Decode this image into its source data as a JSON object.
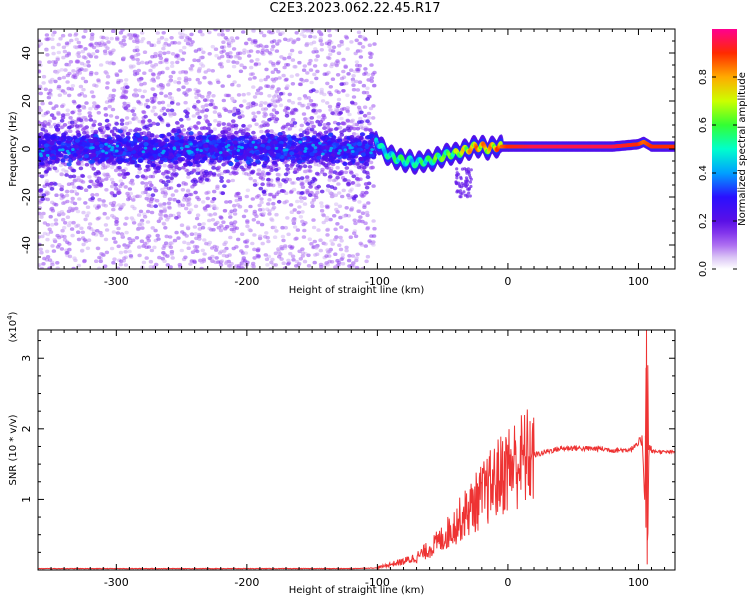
{
  "title": "C2E3.2023.062.22.45.R17",
  "chart_data": [
    {
      "type": "heatmap",
      "xlabel": "Height of straight line (km)",
      "ylabel": "Frequency (Hz)",
      "xlim": [
        -360,
        128
      ],
      "ylim": [
        -50,
        50
      ],
      "xticks": [
        -300,
        -200,
        -100,
        0,
        100
      ],
      "yticks": [
        -40,
        -20,
        0,
        20,
        40
      ],
      "grid": false,
      "colorbar": {
        "label": "Normalized spectral amplitude",
        "range": [
          0,
          1
        ],
        "ticks": [
          0.0,
          0.2,
          0.4,
          0.6,
          0.8
        ]
      },
      "noise_region": {
        "x": [
          -360,
          -102
        ],
        "note_values": "scattered low-amplitude speckle across all frequencies, dense band near 0 Hz"
      },
      "signal_trace": {
        "x": [
          -101,
          -95,
          -90,
          -85,
          -80,
          -75,
          -70,
          -65,
          -60,
          -55,
          -50,
          -45,
          -40,
          -35,
          -30,
          -25,
          -20,
          -15,
          -10,
          -5,
          0,
          20,
          40,
          60,
          80,
          100,
          104,
          110,
          128
        ],
        "y": [
          4,
          -1,
          -3,
          -4,
          -5,
          -5,
          -6,
          -5,
          -5,
          -4,
          -3,
          -2,
          -2,
          -1,
          0,
          1,
          1,
          0,
          1,
          1,
          1,
          1,
          1,
          1,
          1,
          2,
          3,
          1,
          1
        ],
        "amplitude": [
          0.45,
          0.5,
          0.5,
          0.55,
          0.55,
          0.5,
          0.5,
          0.55,
          0.55,
          0.6,
          0.6,
          0.6,
          0.65,
          0.7,
          0.75,
          0.8,
          0.8,
          0.75,
          0.8,
          0.85,
          0.9,
          0.95,
          0.95,
          0.95,
          0.95,
          0.9,
          0.85,
          0.9,
          0.9
        ]
      }
    },
    {
      "type": "line",
      "xlabel": "Height of straight line (km)",
      "ylabel": "SNR (10 * v/v)",
      "yscale_note": "(x10",
      "yscale_exp": "4",
      "yscale_close": ")",
      "xlim": [
        -360,
        128
      ],
      "ylim": [
        0,
        3.4
      ],
      "xticks": [
        -300,
        -200,
        -100,
        0,
        100
      ],
      "yticks": [
        1,
        2,
        3
      ],
      "grid": false,
      "color": "#ee3333",
      "series": [
        {
          "x": [
            -360,
            -300,
            -200,
            -120,
            -100,
            -90,
            -80,
            -70,
            -60,
            -50,
            -45,
            -40,
            -35,
            -30,
            -25,
            -20,
            -15,
            -10,
            -5,
            0,
            5,
            10,
            15,
            20,
            25,
            30,
            40,
            50,
            60,
            70,
            80,
            90,
            95,
            100,
            103,
            105,
            106,
            107,
            108,
            110,
            115,
            120,
            128
          ],
          "values": [
            0.02,
            0.02,
            0.02,
            0.02,
            0.03,
            0.08,
            0.12,
            0.18,
            0.3,
            0.45,
            0.55,
            0.65,
            0.75,
            0.85,
            0.95,
            1.05,
            1.15,
            1.25,
            1.35,
            1.45,
            1.5,
            1.55,
            1.6,
            1.63,
            1.65,
            1.68,
            1.72,
            1.73,
            1.72,
            1.72,
            1.7,
            1.7,
            1.72,
            1.78,
            1.85,
            0.9,
            3.3,
            0.1,
            1.75,
            1.68,
            1.68,
            1.67,
            1.67
          ]
        }
      ]
    }
  ]
}
